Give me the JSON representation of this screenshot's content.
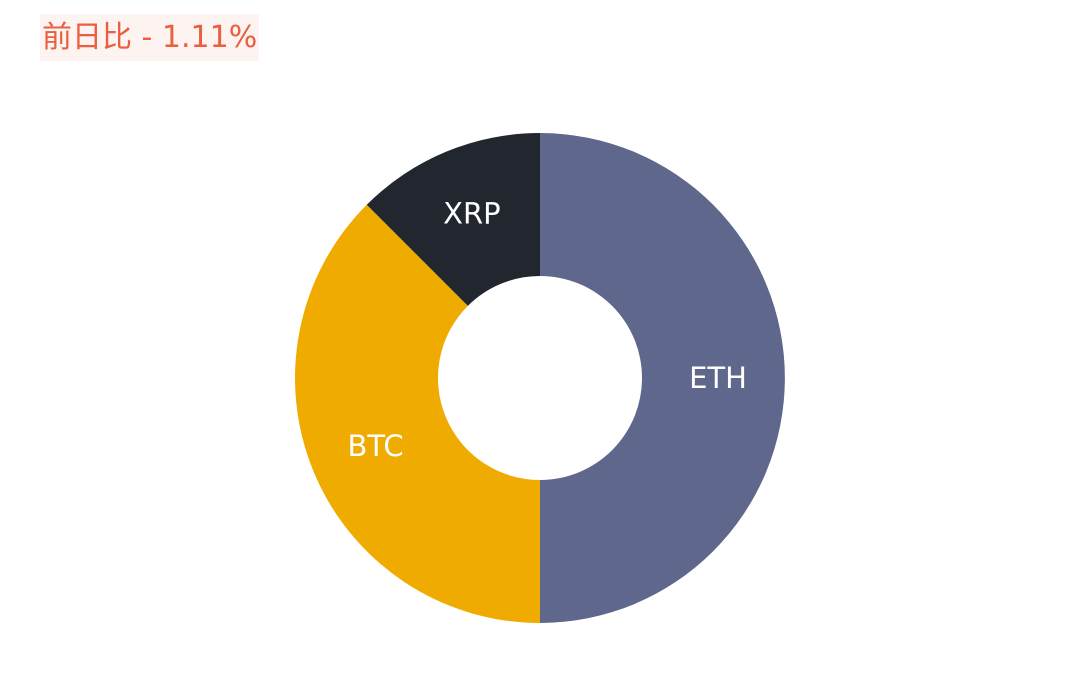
{
  "header": {
    "change_text": "前日比 - 1.11%",
    "change_color": "#e95f3f",
    "change_background": "#fdf3f1"
  },
  "chart_data": {
    "type": "pie",
    "donut": true,
    "title": "",
    "legend": "none",
    "labels_on_slices": true,
    "slices": [
      {
        "name": "ETH",
        "value": 50,
        "color": "#60678c"
      },
      {
        "name": "BTC",
        "value": 37.5,
        "color": "#f0ab00"
      },
      {
        "name": "XRP",
        "value": 12.5,
        "color": "#22272f"
      }
    ]
  }
}
